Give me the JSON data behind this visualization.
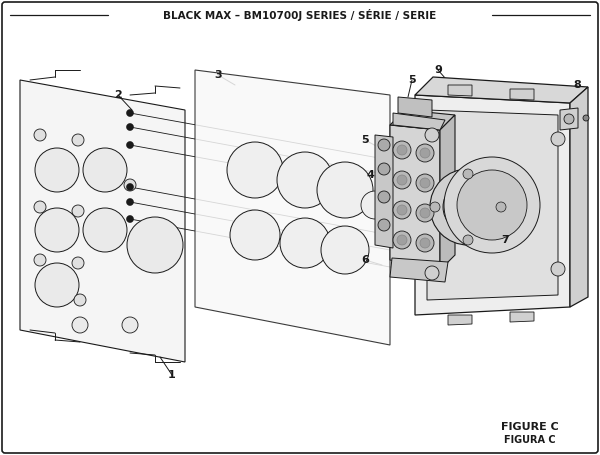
{
  "title": "BLACK MAX – BM10700J SERIES / SÉRIE / SERIE",
  "figure_label": "FIGURE C",
  "figura_label": "FIGURA C",
  "bg_color": "#ffffff",
  "line_color": "#1a1a1a",
  "face_color": "#f2f2f2",
  "dark_color": "#c8c8c8"
}
